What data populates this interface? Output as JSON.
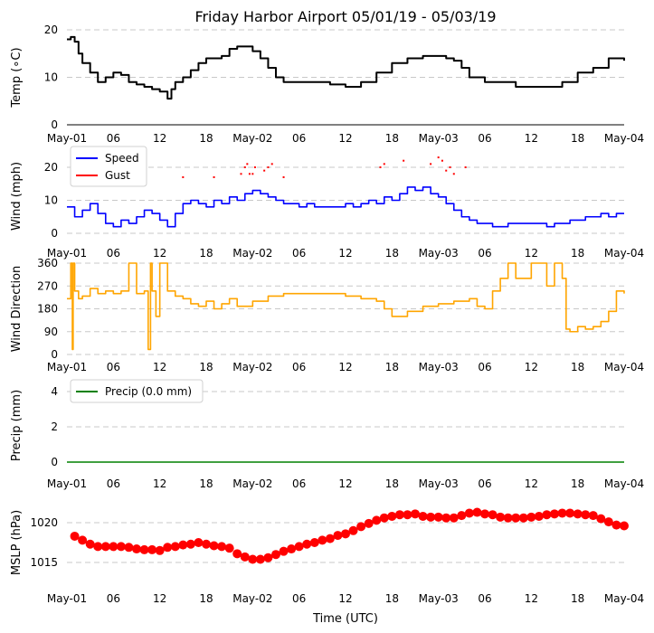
{
  "chart_data": {
    "title": "Friday Harbor Airport 05/01/19 - 05/03/19",
    "xlabel": "Time (UTC)",
    "x_tick_labels": [
      "May-01",
      "06",
      "12",
      "18",
      "May-02",
      "06",
      "12",
      "18",
      "May-03",
      "06",
      "12",
      "18",
      "May-04"
    ],
    "x_range_hours": [
      0,
      72
    ],
    "panels": [
      {
        "id": "temp",
        "type": "line",
        "ylabel": "Temp (∘C)",
        "ylim": [
          0,
          20
        ],
        "yticks": [
          "0",
          "10",
          "20"
        ],
        "series": [
          {
            "name": "Temp",
            "color": "#000000",
            "x": [
              0,
              0.5,
              1,
              1.5,
              2,
              3,
              4,
              5,
              6,
              7,
              8,
              9,
              10,
              11,
              12,
              13,
              13.5,
              14,
              15,
              16,
              17,
              18,
              19,
              20,
              21,
              22,
              23,
              24,
              25,
              26,
              27,
              28,
              29,
              30,
              32,
              34,
              36,
              38,
              40,
              42,
              44,
              46,
              48,
              49,
              50,
              51,
              52,
              54,
              56,
              58,
              60,
              62,
              64,
              66,
              68,
              70,
              72
            ],
            "values": [
              18,
              18.5,
              17.5,
              15,
              13,
              11,
              9,
              10,
              11,
              10.5,
              9,
              8.5,
              8,
              7.5,
              7,
              5.5,
              7.5,
              9,
              10,
              11.5,
              13,
              14,
              14,
              14.5,
              16,
              16.5,
              16.5,
              15.5,
              14,
              12,
              10,
              9,
              9,
              9,
              9,
              8.5,
              8,
              9,
              11,
              13,
              14,
              14.5,
              14.5,
              14,
              13.5,
              12,
              10,
              9,
              9,
              8,
              8,
              8,
              9,
              11,
              12,
              14,
              13.5
            ]
          }
        ]
      },
      {
        "id": "wind",
        "type": "line",
        "ylabel": "Wind (mph)",
        "ylim": [
          0,
          25
        ],
        "yticks": [
          "0",
          "10",
          "20"
        ],
        "legend": [
          "Speed",
          "Gust"
        ],
        "series": [
          {
            "name": "Speed",
            "color": "#0000ff",
            "x": [
              0,
              1,
              2,
              3,
              4,
              5,
              6,
              7,
              8,
              9,
              10,
              11,
              12,
              13,
              14,
              15,
              16,
              17,
              18,
              19,
              20,
              21,
              22,
              23,
              24,
              25,
              26,
              27,
              28,
              29,
              30,
              31,
              32,
              33,
              34,
              35,
              36,
              37,
              38,
              39,
              40,
              41,
              42,
              43,
              44,
              45,
              46,
              47,
              48,
              49,
              50,
              51,
              52,
              53,
              54,
              55,
              56,
              57,
              58,
              59,
              60,
              61,
              62,
              63,
              64,
              65,
              66,
              67,
              68,
              69,
              70,
              71,
              72
            ],
            "values": [
              8,
              5,
              7,
              9,
              6,
              3,
              2,
              4,
              3,
              5,
              7,
              6,
              4,
              2,
              6,
              9,
              10,
              9,
              8,
              10,
              9,
              11,
              10,
              12,
              13,
              12,
              11,
              10,
              9,
              9,
              8,
              9,
              8,
              8,
              8,
              8,
              9,
              8,
              9,
              10,
              9,
              11,
              10,
              12,
              14,
              13,
              14,
              12,
              11,
              9,
              7,
              5,
              4,
              3,
              3,
              2,
              2,
              3,
              3,
              3,
              3,
              3,
              2,
              3,
              3,
              4,
              4,
              5,
              5,
              6,
              5,
              6,
              6
            ]
          },
          {
            "name": "Gust",
            "color": "#ff0000",
            "x": [
              15,
              19,
              22.5,
              23,
              23.3,
              23.6,
              24,
              24.3,
              25.5,
              26,
              26.5,
              28,
              40.5,
              41,
              43.5,
              47,
              48,
              48.5,
              49,
              49.5,
              50,
              51.5
            ],
            "values": [
              17,
              17,
              18,
              20,
              21,
              18,
              18,
              20,
              19,
              20,
              21,
              17,
              20,
              21,
              22,
              21,
              23,
              22,
              19,
              20,
              18,
              20
            ]
          }
        ]
      },
      {
        "id": "wdir",
        "type": "line",
        "ylabel": "Wind Direction",
        "ylim": [
          0,
          360
        ],
        "yticks": [
          "0",
          "90",
          "180",
          "270",
          "360"
        ],
        "series": [
          {
            "name": "Direction",
            "color": "#ffa500",
            "x": [
              0,
              0.4,
              0.5,
              0.7,
              0.8,
              1,
              1.5,
              2,
              3,
              4,
              5,
              6,
              7,
              8,
              9,
              10,
              10.5,
              10.8,
              11,
              11.5,
              12,
              13,
              14,
              15,
              16,
              17,
              18,
              19,
              20,
              21,
              22,
              24,
              26,
              28,
              30,
              32,
              34,
              36,
              38,
              40,
              41,
              42,
              44,
              46,
              48,
              50,
              52,
              53,
              54,
              55,
              56,
              57,
              58,
              60,
              62,
              63,
              64,
              64.5,
              65,
              66,
              67,
              68,
              69,
              70,
              71,
              72
            ],
            "values": [
              220,
              220,
              360,
              20,
              360,
              250,
              220,
              230,
              260,
              240,
              250,
              240,
              250,
              360,
              240,
              250,
              20,
              360,
              250,
              150,
              360,
              250,
              230,
              220,
              200,
              190,
              210,
              180,
              200,
              220,
              190,
              210,
              230,
              240,
              240,
              240,
              240,
              230,
              220,
              210,
              180,
              150,
              170,
              190,
              200,
              210,
              220,
              190,
              180,
              250,
              300,
              360,
              300,
              360,
              270,
              360,
              300,
              100,
              90,
              110,
              100,
              110,
              130,
              170,
              250,
              240
            ]
          }
        ]
      },
      {
        "id": "precip",
        "type": "line",
        "ylabel": "Precip (mm)",
        "ylim": [
          0,
          5
        ],
        "yticks": [
          "0",
          "2",
          "4"
        ],
        "legend": [
          "Precip (0.0 mm)"
        ],
        "series": [
          {
            "name": "Precip (0.0 mm)",
            "color": "#008000",
            "x": [
              0,
              72
            ],
            "values": [
              0,
              0
            ]
          }
        ]
      },
      {
        "id": "mslp",
        "type": "scatter",
        "ylabel": "MSLP (hPa)",
        "ylim": [
          1010,
          1025
        ],
        "yticks": [
          "1015",
          "1020"
        ],
        "series": [
          {
            "name": "MSLP",
            "color": "#ff0000",
            "x": [
              1,
              2,
              3,
              4,
              5,
              6,
              7,
              8,
              9,
              10,
              11,
              12,
              13,
              14,
              15,
              16,
              17,
              18,
              19,
              20,
              21,
              22,
              23,
              24,
              25,
              26,
              27,
              28,
              29,
              30,
              31,
              32,
              33,
              34,
              35,
              36,
              37,
              38,
              39,
              40,
              41,
              42,
              43,
              44,
              45,
              46,
              47,
              48,
              49,
              50,
              51,
              52,
              53,
              54,
              55,
              56,
              57,
              58,
              59,
              60,
              61,
              62,
              63,
              64,
              65,
              66,
              67,
              68,
              69,
              70,
              71,
              72
            ],
            "values": [
              1018.3,
              1017.8,
              1017.3,
              1017.0,
              1017.0,
              1017.0,
              1017.0,
              1016.9,
              1016.7,
              1016.6,
              1016.6,
              1016.5,
              1016.9,
              1017.0,
              1017.2,
              1017.3,
              1017.5,
              1017.3,
              1017.1,
              1017.0,
              1016.8,
              1016.1,
              1015.7,
              1015.4,
              1015.4,
              1015.6,
              1016.0,
              1016.4,
              1016.7,
              1017.0,
              1017.3,
              1017.5,
              1017.8,
              1018.0,
              1018.4,
              1018.6,
              1019.0,
              1019.5,
              1019.9,
              1020.3,
              1020.6,
              1020.8,
              1021.0,
              1021.0,
              1021.1,
              1020.8,
              1020.7,
              1020.7,
              1020.6,
              1020.6,
              1020.9,
              1021.2,
              1021.3,
              1021.1,
              1021.0,
              1020.7,
              1020.6,
              1020.6,
              1020.6,
              1020.7,
              1020.8,
              1021.0,
              1021.1,
              1021.2,
              1021.2,
              1021.1,
              1021.0,
              1020.9,
              1020.5,
              1020.1,
              1019.7,
              1019.6
            ]
          }
        ]
      }
    ]
  }
}
